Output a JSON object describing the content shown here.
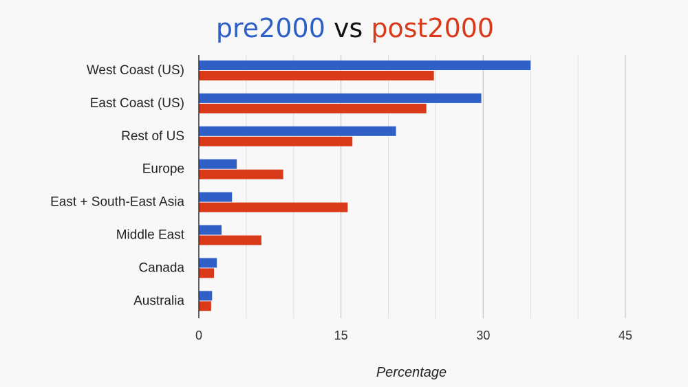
{
  "chart_data": {
    "type": "bar",
    "orientation": "horizontal",
    "title_parts": [
      {
        "text": "pre2000",
        "color": "#3060c6"
      },
      {
        "text": " vs ",
        "color": "#111111"
      },
      {
        "text": "post2000",
        "color": "#d83a1a"
      }
    ],
    "categories": [
      "West Coast (US)",
      "East Coast (US)",
      "Rest of US",
      "Europe",
      "East + South-East Asia",
      "Middle East",
      "Canada",
      "Australia"
    ],
    "series": [
      {
        "name": "pre2000",
        "color": "#3060c6",
        "values": [
          35,
          29.8,
          20.8,
          4,
          3.5,
          2.4,
          1.9,
          1.4
        ]
      },
      {
        "name": "post2000",
        "color": "#d83a1a",
        "values": [
          24.8,
          24,
          16.2,
          8.9,
          15.7,
          6.6,
          1.6,
          1.3
        ]
      }
    ],
    "xlim": [
      0,
      45
    ],
    "xticks": [
      0,
      15,
      30,
      45
    ],
    "xtick_labels": [
      "0",
      "15",
      "30",
      "45"
    ],
    "minor_grid_step": 5,
    "xlabel": "Percentage",
    "ylabel": "",
    "grid": true,
    "legend": "none"
  }
}
